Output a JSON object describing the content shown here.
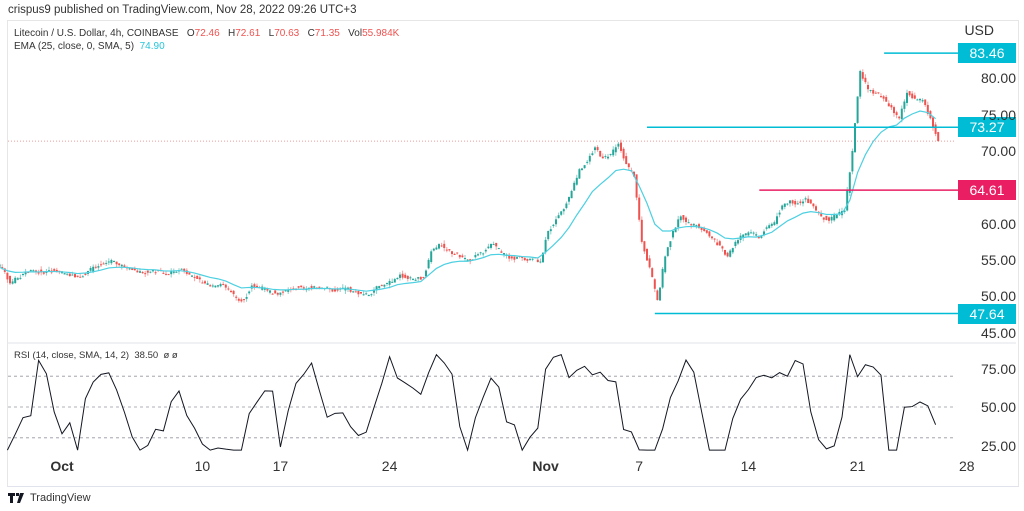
{
  "published": "crispus9 published on TradingView.com, Nov 28, 2022 09:26 UTC+3",
  "legend": {
    "symbol": "Litecoin / U.S. Dollar, 4h, COINBASE",
    "o_label": "O",
    "o": "72.46",
    "h_label": "H",
    "h": "72.61",
    "l_label": "L",
    "l": "70.63",
    "c_label": "C",
    "c": "71.35",
    "vol_label": "Vol",
    "vol": "55.984K",
    "ema_label": "EMA (25, close, 0, SMA, 5)",
    "ema_value": "74.90",
    "rsi_label": "RSI (14, close, SMA, 14, 2)",
    "rsi_value": "38.50",
    "rsi_extra": "ø  ø"
  },
  "footer": {
    "brand": "TradingView"
  },
  "colors": {
    "up": "#26a69a",
    "down": "#ef5350",
    "ema": "#4dd0e1",
    "level": "#00bcd4",
    "resistance": "#e91e63"
  },
  "chart_data": {
    "type": "candlestick",
    "currency": "USD",
    "interval_note": "approximate closes sampled every 12h from Sep 27 to Nov 28, 2022",
    "start_day": -4,
    "step_days": 0.5,
    "closes": [
      54.0,
      51.8,
      52.5,
      53.4,
      53.6,
      53.3,
      53.6,
      53.4,
      53.2,
      53.0,
      52.6,
      53.5,
      54.0,
      54.5,
      55.0,
      54.3,
      54.0,
      53.6,
      53.2,
      53.4,
      53.5,
      53.0,
      53.4,
      53.8,
      53.0,
      52.4,
      51.8,
      51.5,
      51.7,
      51.0,
      49.8,
      49.5,
      51.5,
      51.2,
      50.8,
      50.4,
      50.6,
      51.0,
      51.2,
      51.0,
      51.4,
      51.2,
      51.0,
      50.8,
      51.2,
      50.7,
      50.4,
      50.2,
      51.4,
      51.6,
      52.0,
      53.0,
      52.4,
      52.3,
      52.6,
      56.2,
      57.2,
      56.4,
      55.8,
      55.4,
      54.8,
      55.8,
      56.4,
      57.2,
      56.0,
      55.2,
      55.4,
      55.0,
      55.2,
      54.8,
      59.0,
      60.6,
      62.0,
      64.5,
      67.5,
      68.5,
      70.5,
      69.0,
      69.6,
      71.0,
      68.2,
      66.5,
      57.5,
      54.0,
      49.5,
      55.5,
      59.0,
      61.0,
      60.2,
      59.8,
      59.0,
      58.0,
      57.0,
      55.5,
      57.5,
      58.5,
      58.8,
      58.0,
      59.5,
      60.2,
      62.5,
      63.2,
      62.8,
      63.5,
      62.4,
      61.0,
      60.4,
      61.2,
      61.8,
      70.0,
      81.0,
      78.5,
      78.0,
      77.2,
      76.0,
      74.5,
      78.0,
      77.2,
      77.0,
      74.5,
      71.35
    ],
    "price_axis": {
      "ylim": [
        43,
        87
      ],
      "ticks": [
        "80.00",
        "75.00",
        "70.00",
        "60.00",
        "55.00",
        "50.00",
        "45.00"
      ],
      "tick_values": [
        80,
        75,
        70,
        60,
        55,
        50,
        45
      ]
    },
    "levels": [
      {
        "value": 83.46,
        "label": "83.46",
        "from_day": 52.7,
        "color": "level"
      },
      {
        "value": 73.27,
        "label": "73.27",
        "from_day": 37.5,
        "color": "level"
      },
      {
        "value": 64.61,
        "label": "64.61",
        "from_day": 44.7,
        "color": "resistance"
      },
      {
        "value": 47.64,
        "label": "47.64",
        "from_day": 38.0,
        "color": "level"
      }
    ],
    "current_price": 71.35,
    "ema_period": 25,
    "rsi": {
      "period": 14,
      "ylim": [
        15,
        88
      ],
      "ticks": [
        "75.00",
        "50.00",
        "25.00"
      ],
      "tick_values": [
        75,
        50,
        25
      ],
      "bands": [
        70,
        50,
        30
      ]
    },
    "x_axis": {
      "labels": [
        "Oct",
        "10",
        "17",
        "24",
        "Nov",
        "7",
        "14",
        "21",
        "28"
      ],
      "days": [
        0,
        9,
        14,
        21,
        31,
        37,
        44,
        51,
        58
      ]
    }
  }
}
